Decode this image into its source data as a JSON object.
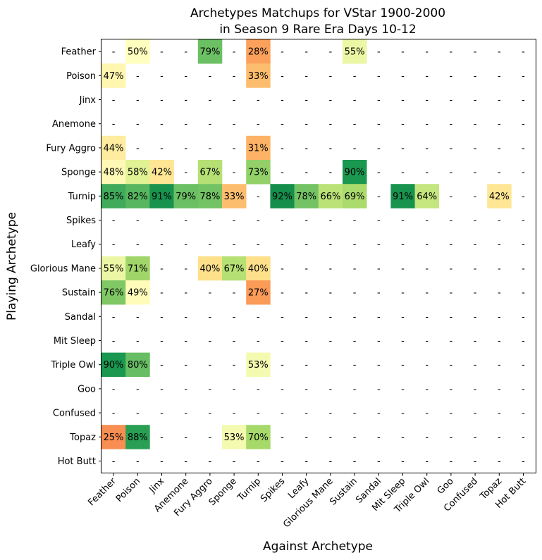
{
  "chart_data": {
    "type": "heatmap",
    "title": [
      "Archetypes Matchups for VStar 1900-2000",
      "in Season 9 Rare Era Days 10-12"
    ],
    "xlabel": "Against Archetype",
    "ylabel": "Playing Archetype",
    "empty_label": "-",
    "colormap": "RdYlGn",
    "value_range": [
      0,
      100
    ],
    "categories": [
      "Feather",
      "Poison",
      "Jinx",
      "Anemone",
      "Fury Aggro",
      "Sponge",
      "Turnip",
      "Spikes",
      "Leafy",
      "Glorious Mane",
      "Sustain",
      "Sandal",
      "Mit Sleep",
      "Triple Owl",
      "Goo",
      "Confused",
      "Topaz",
      "Hot Butt"
    ],
    "values": [
      [
        null,
        50,
        null,
        null,
        79,
        null,
        28,
        null,
        null,
        null,
        55,
        null,
        null,
        null,
        null,
        null,
        null,
        null
      ],
      [
        47,
        null,
        null,
        null,
        null,
        null,
        33,
        null,
        null,
        null,
        null,
        null,
        null,
        null,
        null,
        null,
        null,
        null
      ],
      [
        null,
        null,
        null,
        null,
        null,
        null,
        null,
        null,
        null,
        null,
        null,
        null,
        null,
        null,
        null,
        null,
        null,
        null
      ],
      [
        null,
        null,
        null,
        null,
        null,
        null,
        null,
        null,
        null,
        null,
        null,
        null,
        null,
        null,
        null,
        null,
        null,
        null
      ],
      [
        44,
        null,
        null,
        null,
        null,
        null,
        31,
        null,
        null,
        null,
        null,
        null,
        null,
        null,
        null,
        null,
        null,
        null
      ],
      [
        48,
        58,
        42,
        null,
        67,
        null,
        73,
        null,
        null,
        null,
        90,
        null,
        null,
        null,
        null,
        null,
        null,
        null
      ],
      [
        85,
        82,
        91,
        79,
        78,
        33,
        null,
        92,
        78,
        66,
        69,
        null,
        91,
        64,
        null,
        null,
        42,
        null
      ],
      [
        null,
        null,
        null,
        null,
        null,
        null,
        null,
        null,
        null,
        null,
        null,
        null,
        null,
        null,
        null,
        null,
        null,
        null
      ],
      [
        null,
        null,
        null,
        null,
        null,
        null,
        null,
        null,
        null,
        null,
        null,
        null,
        null,
        null,
        null,
        null,
        null,
        null
      ],
      [
        55,
        71,
        null,
        null,
        40,
        67,
        40,
        null,
        null,
        null,
        null,
        null,
        null,
        null,
        null,
        null,
        null,
        null
      ],
      [
        76,
        49,
        null,
        null,
        null,
        null,
        27,
        null,
        null,
        null,
        null,
        null,
        null,
        null,
        null,
        null,
        null,
        null
      ],
      [
        null,
        null,
        null,
        null,
        null,
        null,
        null,
        null,
        null,
        null,
        null,
        null,
        null,
        null,
        null,
        null,
        null,
        null
      ],
      [
        null,
        null,
        null,
        null,
        null,
        null,
        null,
        null,
        null,
        null,
        null,
        null,
        null,
        null,
        null,
        null,
        null,
        null
      ],
      [
        90,
        80,
        null,
        null,
        null,
        null,
        53,
        null,
        null,
        null,
        null,
        null,
        null,
        null,
        null,
        null,
        null,
        null
      ],
      [
        null,
        null,
        null,
        null,
        null,
        null,
        null,
        null,
        null,
        null,
        null,
        null,
        null,
        null,
        null,
        null,
        null,
        null
      ],
      [
        null,
        null,
        null,
        null,
        null,
        null,
        null,
        null,
        null,
        null,
        null,
        null,
        null,
        null,
        null,
        null,
        null,
        null
      ],
      [
        25,
        88,
        null,
        null,
        null,
        53,
        70,
        null,
        null,
        null,
        null,
        null,
        null,
        null,
        null,
        null,
        null,
        null
      ],
      [
        null,
        null,
        null,
        null,
        null,
        null,
        null,
        null,
        null,
        null,
        null,
        null,
        null,
        null,
        null,
        null,
        null,
        null
      ]
    ]
  }
}
